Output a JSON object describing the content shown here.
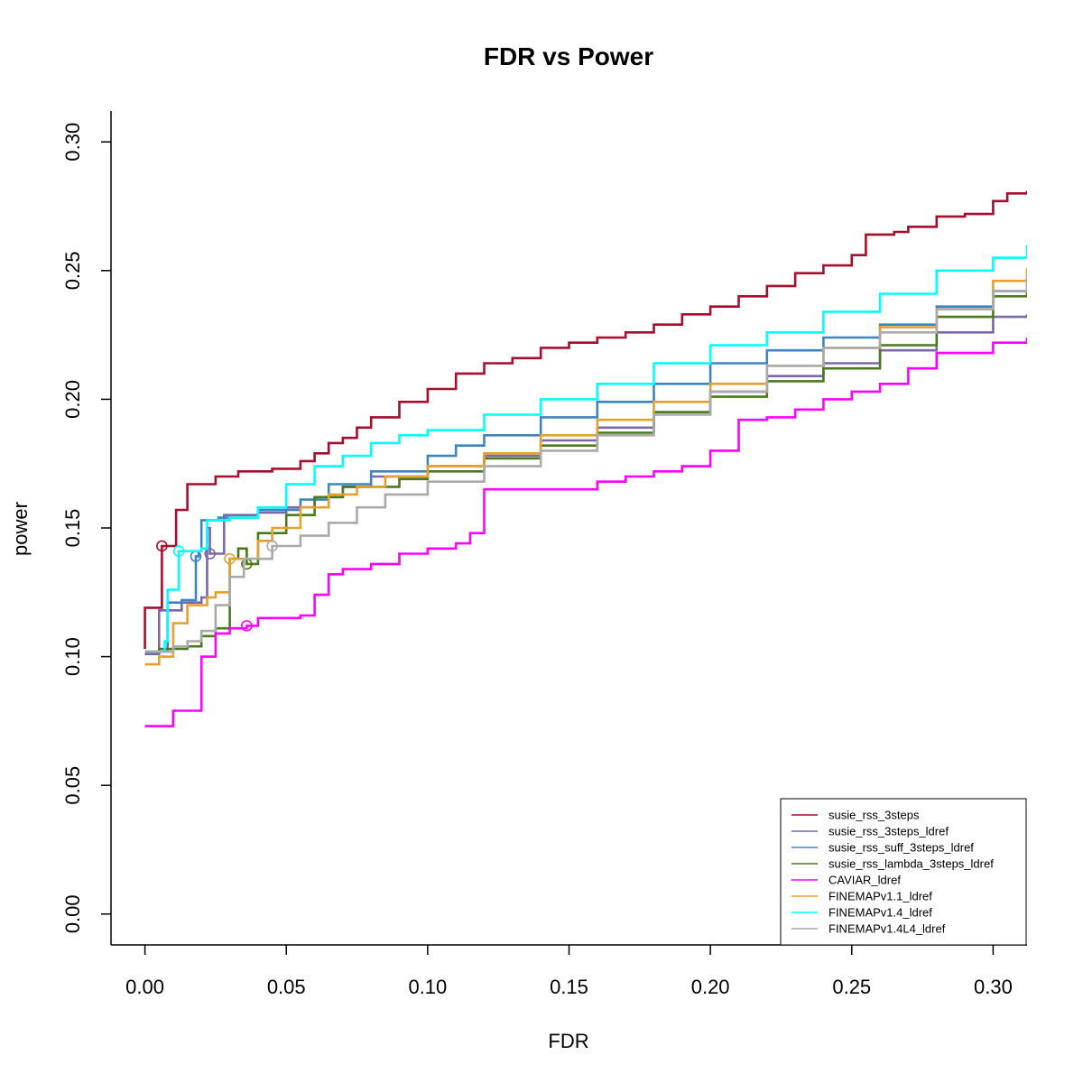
{
  "chart_data": {
    "type": "line",
    "title": "FDR vs Power",
    "xlabel": "FDR",
    "ylabel": "power",
    "xlim": [
      -0.012,
      0.312
    ],
    "ylim": [
      -0.012,
      0.312
    ],
    "xticks": [
      0.0,
      0.05,
      0.1,
      0.15,
      0.2,
      0.25,
      0.3
    ],
    "yticks": [
      0.0,
      0.05,
      0.1,
      0.15,
      0.2,
      0.25,
      0.3
    ],
    "xtick_labels": [
      "0.00",
      "0.05",
      "0.10",
      "0.15",
      "0.20",
      "0.25",
      "0.30"
    ],
    "ytick_labels": [
      "0.00",
      "0.05",
      "0.10",
      "0.15",
      "0.20",
      "0.25",
      "0.30"
    ],
    "grid": false,
    "legend_position": "bottom-right",
    "series": [
      {
        "name": "susie_rss_3steps",
        "color": "#a50f2d",
        "marker": [
          0.006,
          0.143
        ],
        "points": [
          [
            0.0,
            0.103
          ],
          [
            0.0,
            0.119
          ],
          [
            0.006,
            0.122
          ],
          [
            0.006,
            0.143
          ],
          [
            0.011,
            0.144
          ],
          [
            0.011,
            0.157
          ],
          [
            0.015,
            0.157
          ],
          [
            0.015,
            0.167
          ],
          [
            0.025,
            0.17
          ],
          [
            0.033,
            0.172
          ],
          [
            0.045,
            0.173
          ],
          [
            0.055,
            0.176
          ],
          [
            0.06,
            0.179
          ],
          [
            0.065,
            0.183
          ],
          [
            0.07,
            0.185
          ],
          [
            0.075,
            0.189
          ],
          [
            0.08,
            0.193
          ],
          [
            0.09,
            0.199
          ],
          [
            0.1,
            0.204
          ],
          [
            0.11,
            0.21
          ],
          [
            0.12,
            0.214
          ],
          [
            0.13,
            0.216
          ],
          [
            0.14,
            0.22
          ],
          [
            0.15,
            0.222
          ],
          [
            0.16,
            0.224
          ],
          [
            0.17,
            0.226
          ],
          [
            0.18,
            0.229
          ],
          [
            0.19,
            0.233
          ],
          [
            0.2,
            0.236
          ],
          [
            0.21,
            0.24
          ],
          [
            0.22,
            0.244
          ],
          [
            0.23,
            0.249
          ],
          [
            0.24,
            0.252
          ],
          [
            0.25,
            0.256
          ],
          [
            0.255,
            0.264
          ],
          [
            0.265,
            0.265
          ],
          [
            0.27,
            0.267
          ],
          [
            0.28,
            0.271
          ],
          [
            0.29,
            0.272
          ],
          [
            0.3,
            0.277
          ],
          [
            0.305,
            0.28
          ],
          [
            0.312,
            0.281
          ]
        ]
      },
      {
        "name": "susie_rss_3steps_ldref",
        "color": "#7b68a8",
        "marker": [
          0.023,
          0.14
        ],
        "points": [
          [
            0.0,
            0.101
          ],
          [
            0.005,
            0.118
          ],
          [
            0.013,
            0.121
          ],
          [
            0.02,
            0.123
          ],
          [
            0.022,
            0.15
          ],
          [
            0.023,
            0.14
          ],
          [
            0.026,
            0.14
          ],
          [
            0.028,
            0.155
          ],
          [
            0.04,
            0.156
          ],
          [
            0.05,
            0.158
          ],
          [
            0.06,
            0.162
          ],
          [
            0.07,
            0.166
          ],
          [
            0.08,
            0.17
          ],
          [
            0.1,
            0.174
          ],
          [
            0.12,
            0.178
          ],
          [
            0.14,
            0.184
          ],
          [
            0.16,
            0.189
          ],
          [
            0.18,
            0.195
          ],
          [
            0.2,
            0.203
          ],
          [
            0.22,
            0.209
          ],
          [
            0.24,
            0.214
          ],
          [
            0.26,
            0.219
          ],
          [
            0.28,
            0.226
          ],
          [
            0.3,
            0.232
          ],
          [
            0.312,
            0.233
          ]
        ]
      },
      {
        "name": "susie_rss_suff_3steps_ldref",
        "color": "#3d85c0",
        "marker": [
          0.018,
          0.139
        ],
        "points": [
          [
            0.0,
            0.102
          ],
          [
            0.008,
            0.121
          ],
          [
            0.013,
            0.122
          ],
          [
            0.018,
            0.123
          ],
          [
            0.018,
            0.139
          ],
          [
            0.019,
            0.141
          ],
          [
            0.02,
            0.153
          ],
          [
            0.026,
            0.154
          ],
          [
            0.04,
            0.157
          ],
          [
            0.055,
            0.161
          ],
          [
            0.065,
            0.167
          ],
          [
            0.08,
            0.172
          ],
          [
            0.1,
            0.178
          ],
          [
            0.11,
            0.182
          ],
          [
            0.12,
            0.186
          ],
          [
            0.14,
            0.193
          ],
          [
            0.16,
            0.199
          ],
          [
            0.18,
            0.206
          ],
          [
            0.2,
            0.214
          ],
          [
            0.22,
            0.219
          ],
          [
            0.24,
            0.224
          ],
          [
            0.26,
            0.229
          ],
          [
            0.28,
            0.236
          ],
          [
            0.3,
            0.242
          ],
          [
            0.312,
            0.245
          ]
        ]
      },
      {
        "name": "susie_rss_lambda_3steps_ldref",
        "color": "#4a7a1c",
        "marker": [
          0.036,
          0.136
        ],
        "points": [
          [
            0.0,
            0.102
          ],
          [
            0.005,
            0.103
          ],
          [
            0.015,
            0.104
          ],
          [
            0.02,
            0.108
          ],
          [
            0.025,
            0.111
          ],
          [
            0.03,
            0.138
          ],
          [
            0.033,
            0.142
          ],
          [
            0.036,
            0.136
          ],
          [
            0.04,
            0.148
          ],
          [
            0.05,
            0.155
          ],
          [
            0.06,
            0.162
          ],
          [
            0.07,
            0.166
          ],
          [
            0.08,
            0.166
          ],
          [
            0.09,
            0.169
          ],
          [
            0.1,
            0.172
          ],
          [
            0.12,
            0.177
          ],
          [
            0.14,
            0.182
          ],
          [
            0.16,
            0.187
          ],
          [
            0.18,
            0.195
          ],
          [
            0.2,
            0.201
          ],
          [
            0.22,
            0.207
          ],
          [
            0.24,
            0.212
          ],
          [
            0.26,
            0.221
          ],
          [
            0.28,
            0.232
          ],
          [
            0.3,
            0.24
          ],
          [
            0.312,
            0.242
          ]
        ]
      },
      {
        "name": "CAVIAR_ldref",
        "color": "#ff00ff",
        "marker": [
          0.036,
          0.112
        ],
        "points": [
          [
            0.0,
            0.073
          ],
          [
            0.01,
            0.079
          ],
          [
            0.02,
            0.081
          ],
          [
            0.02,
            0.1
          ],
          [
            0.025,
            0.109
          ],
          [
            0.03,
            0.111
          ],
          [
            0.036,
            0.112
          ],
          [
            0.04,
            0.115
          ],
          [
            0.055,
            0.116
          ],
          [
            0.06,
            0.124
          ],
          [
            0.065,
            0.132
          ],
          [
            0.07,
            0.134
          ],
          [
            0.08,
            0.136
          ],
          [
            0.09,
            0.14
          ],
          [
            0.1,
            0.142
          ],
          [
            0.11,
            0.144
          ],
          [
            0.115,
            0.148
          ],
          [
            0.12,
            0.155
          ],
          [
            0.12,
            0.165
          ],
          [
            0.13,
            0.165
          ],
          [
            0.15,
            0.165
          ],
          [
            0.16,
            0.168
          ],
          [
            0.17,
            0.17
          ],
          [
            0.18,
            0.172
          ],
          [
            0.19,
            0.174
          ],
          [
            0.2,
            0.18
          ],
          [
            0.21,
            0.186
          ],
          [
            0.21,
            0.192
          ],
          [
            0.22,
            0.193
          ],
          [
            0.23,
            0.196
          ],
          [
            0.24,
            0.2
          ],
          [
            0.25,
            0.203
          ],
          [
            0.26,
            0.206
          ],
          [
            0.27,
            0.212
          ],
          [
            0.28,
            0.218
          ],
          [
            0.29,
            0.218
          ],
          [
            0.3,
            0.222
          ],
          [
            0.312,
            0.224
          ]
        ]
      },
      {
        "name": "FINEMAPv1.1_ldref",
        "color": "#e6a030",
        "marker": [
          0.03,
          0.138
        ],
        "points": [
          [
            0.0,
            0.097
          ],
          [
            0.005,
            0.1
          ],
          [
            0.01,
            0.113
          ],
          [
            0.015,
            0.12
          ],
          [
            0.022,
            0.123
          ],
          [
            0.025,
            0.125
          ],
          [
            0.03,
            0.132
          ],
          [
            0.03,
            0.138
          ],
          [
            0.04,
            0.145
          ],
          [
            0.045,
            0.15
          ],
          [
            0.055,
            0.158
          ],
          [
            0.065,
            0.163
          ],
          [
            0.075,
            0.166
          ],
          [
            0.085,
            0.17
          ],
          [
            0.1,
            0.174
          ],
          [
            0.12,
            0.179
          ],
          [
            0.14,
            0.186
          ],
          [
            0.16,
            0.192
          ],
          [
            0.18,
            0.199
          ],
          [
            0.2,
            0.206
          ],
          [
            0.22,
            0.213
          ],
          [
            0.24,
            0.22
          ],
          [
            0.26,
            0.228
          ],
          [
            0.28,
            0.235
          ],
          [
            0.3,
            0.246
          ],
          [
            0.312,
            0.251
          ]
        ]
      },
      {
        "name": "FINEMAPv1.4_ldref",
        "color": "#00ffff",
        "marker": [
          0.012,
          0.141
        ],
        "points": [
          [
            0.0,
            0.102
          ],
          [
            0.007,
            0.106
          ],
          [
            0.008,
            0.126
          ],
          [
            0.012,
            0.126
          ],
          [
            0.012,
            0.141
          ],
          [
            0.02,
            0.142
          ],
          [
            0.022,
            0.153
          ],
          [
            0.03,
            0.154
          ],
          [
            0.04,
            0.158
          ],
          [
            0.05,
            0.167
          ],
          [
            0.06,
            0.174
          ],
          [
            0.07,
            0.178
          ],
          [
            0.08,
            0.183
          ],
          [
            0.09,
            0.186
          ],
          [
            0.1,
            0.188
          ],
          [
            0.12,
            0.194
          ],
          [
            0.14,
            0.2
          ],
          [
            0.16,
            0.206
          ],
          [
            0.18,
            0.214
          ],
          [
            0.2,
            0.221
          ],
          [
            0.22,
            0.226
          ],
          [
            0.24,
            0.234
          ],
          [
            0.26,
            0.241
          ],
          [
            0.28,
            0.25
          ],
          [
            0.3,
            0.255
          ],
          [
            0.312,
            0.26
          ]
        ]
      },
      {
        "name": "FINEMAPv1.4L4_ldref",
        "color": "#aaaaaa",
        "marker": [
          0.045,
          0.143
        ],
        "points": [
          [
            0.0,
            0.102
          ],
          [
            0.01,
            0.104
          ],
          [
            0.015,
            0.106
          ],
          [
            0.02,
            0.11
          ],
          [
            0.025,
            0.12
          ],
          [
            0.03,
            0.131
          ],
          [
            0.035,
            0.138
          ],
          [
            0.045,
            0.143
          ],
          [
            0.055,
            0.147
          ],
          [
            0.065,
            0.152
          ],
          [
            0.075,
            0.158
          ],
          [
            0.085,
            0.163
          ],
          [
            0.1,
            0.168
          ],
          [
            0.12,
            0.174
          ],
          [
            0.14,
            0.18
          ],
          [
            0.16,
            0.186
          ],
          [
            0.18,
            0.194
          ],
          [
            0.2,
            0.203
          ],
          [
            0.22,
            0.213
          ],
          [
            0.24,
            0.22
          ],
          [
            0.26,
            0.226
          ],
          [
            0.28,
            0.235
          ],
          [
            0.3,
            0.242
          ],
          [
            0.312,
            0.248
          ]
        ]
      }
    ]
  }
}
